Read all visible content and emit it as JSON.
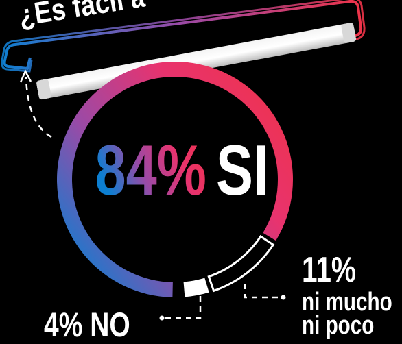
{
  "chart_data": {
    "type": "donut",
    "title": "¿Es fácil a",
    "categories": [
      "SI",
      "ni mucho ni poco",
      "NO"
    ],
    "values": [
      84,
      11,
      4
    ],
    "value_labels": [
      "84%",
      "11%",
      "4%"
    ],
    "colors": [
      "#e8336e",
      "#ffffff",
      "#ffffff"
    ],
    "gradient": [
      "#0d7fd1",
      "#9b4aa6",
      "#e8336e",
      "#ef3348"
    ]
  }
}
